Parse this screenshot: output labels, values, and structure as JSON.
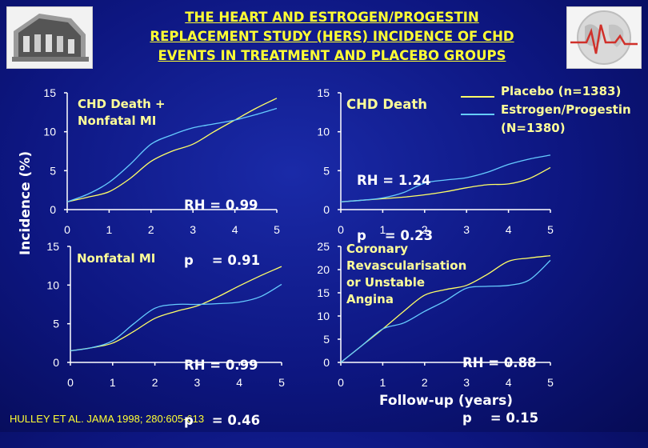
{
  "title_lines": [
    "THE HEART AND ESTROGEN/PROGESTIN",
    "REPLACEMENT STUDY (HERS) INCIDENCE OF CHD",
    "EVENTS IN TREATMENT AND  PLACEBO GROUPS"
  ],
  "y_axis_label": "Incidence (%)",
  "x_axis_label": "Follow-up (years)",
  "citation": "HULLEY ET AL. JAMA 1998; 280:605-613",
  "legend": {
    "placebo": "Placebo (n=1383)",
    "estrogen_line1": "Estrogen/Progestin",
    "estrogen_line2": "(N=1380)"
  },
  "colors": {
    "background": "#0d1680",
    "placebo": "#ffff66",
    "estrogen": "#66ccff",
    "title": "#ffff33",
    "axis": "#ffffff"
  },
  "panels": [
    {
      "title_lines": [
        "CHD Death +",
        "Nonfatal MI"
      ],
      "stat_rh": "RH = 0.99",
      "stat_p": "p    = 0.91"
    },
    {
      "title_lines": [
        "CHD Death"
      ],
      "stat_rh": "RH = 1.24",
      "stat_p": "p    = 0.23"
    },
    {
      "title_lines": [
        "Nonfatal MI"
      ],
      "stat_rh": "RH = 0.99",
      "stat_p": "p    = 0.46"
    },
    {
      "title_lines": [
        "Coronary",
        "Revascularisation",
        "or Unstable",
        "Angina"
      ],
      "stat_rh": "RH = 0.88",
      "stat_p": "p    = 0.15"
    }
  ],
  "chart_data": [
    {
      "type": "line",
      "title": "CHD Death + Nonfatal MI",
      "x": [
        0,
        0.5,
        1,
        1.5,
        2,
        2.5,
        3,
        3.5,
        4,
        4.5,
        5
      ],
      "xlim": [
        0,
        5
      ],
      "ylim": [
        0,
        15
      ],
      "yticks": [
        0,
        5,
        10,
        15
      ],
      "xticks": [
        0,
        1,
        2,
        3,
        4,
        5
      ],
      "series": [
        {
          "name": "Placebo (n=1383)",
          "values": [
            1.0,
            1.6,
            2.3,
            4.0,
            6.2,
            7.5,
            8.4,
            10.0,
            11.5,
            13.0,
            14.3
          ]
        },
        {
          "name": "Estrogen/Progestin (N=1380)",
          "values": [
            1.0,
            2.0,
            3.5,
            5.8,
            8.4,
            9.6,
            10.5,
            11.0,
            11.5,
            12.2,
            13.0
          ]
        }
      ]
    },
    {
      "type": "line",
      "title": "CHD Death",
      "x": [
        0,
        0.5,
        1,
        1.5,
        2,
        2.5,
        3,
        3.5,
        4,
        4.5,
        5
      ],
      "xlim": [
        0,
        5
      ],
      "ylim": [
        0,
        15
      ],
      "yticks": [
        0,
        5,
        10,
        15
      ],
      "xticks": [
        0,
        1,
        2,
        3,
        4,
        5
      ],
      "series": [
        {
          "name": "Placebo (n=1383)",
          "values": [
            1.0,
            1.2,
            1.4,
            1.6,
            1.9,
            2.3,
            2.8,
            3.2,
            3.3,
            4.0,
            5.4
          ]
        },
        {
          "name": "Estrogen/Progestin (N=1380)",
          "values": [
            1.0,
            1.2,
            1.5,
            2.2,
            3.4,
            3.8,
            4.1,
            4.8,
            5.8,
            6.5,
            7.0
          ]
        }
      ]
    },
    {
      "type": "line",
      "title": "Nonfatal MI",
      "x": [
        0,
        0.5,
        1,
        1.5,
        2,
        2.5,
        3,
        3.5,
        4,
        4.5,
        5
      ],
      "xlim": [
        0,
        5
      ],
      "ylim": [
        0,
        15
      ],
      "yticks": [
        0,
        5,
        10,
        15
      ],
      "xticks": [
        0,
        1,
        2,
        3,
        4,
        5
      ],
      "series": [
        {
          "name": "Placebo (n=1383)",
          "values": [
            1.5,
            1.9,
            2.5,
            4.0,
            5.7,
            6.6,
            7.3,
            8.5,
            9.9,
            11.2,
            12.4
          ]
        },
        {
          "name": "Estrogen/Progestin (N=1380)",
          "values": [
            1.5,
            1.9,
            2.8,
            5.0,
            7.0,
            7.5,
            7.5,
            7.6,
            7.8,
            8.5,
            10.1
          ]
        }
      ]
    },
    {
      "type": "line",
      "title": "Coronary Revascularisation or Unstable Angina",
      "x": [
        0,
        0.5,
        1,
        1.5,
        2,
        2.5,
        3,
        3.5,
        4,
        4.5,
        5
      ],
      "xlim": [
        0,
        5
      ],
      "ylim": [
        0,
        25
      ],
      "yticks": [
        0,
        5,
        10,
        15,
        20,
        25
      ],
      "xticks": [
        0,
        1,
        2,
        3,
        4,
        5
      ],
      "series": [
        {
          "name": "Placebo (n=1383)",
          "values": [
            0.0,
            3.6,
            7.2,
            11.0,
            14.5,
            15.7,
            16.6,
            19.0,
            21.8,
            22.5,
            23.0
          ]
        },
        {
          "name": "Estrogen/Progestin (N=1380)",
          "values": [
            0.0,
            3.6,
            7.2,
            8.5,
            11.0,
            13.3,
            16.0,
            16.4,
            16.6,
            17.8,
            22.0
          ]
        }
      ]
    }
  ]
}
